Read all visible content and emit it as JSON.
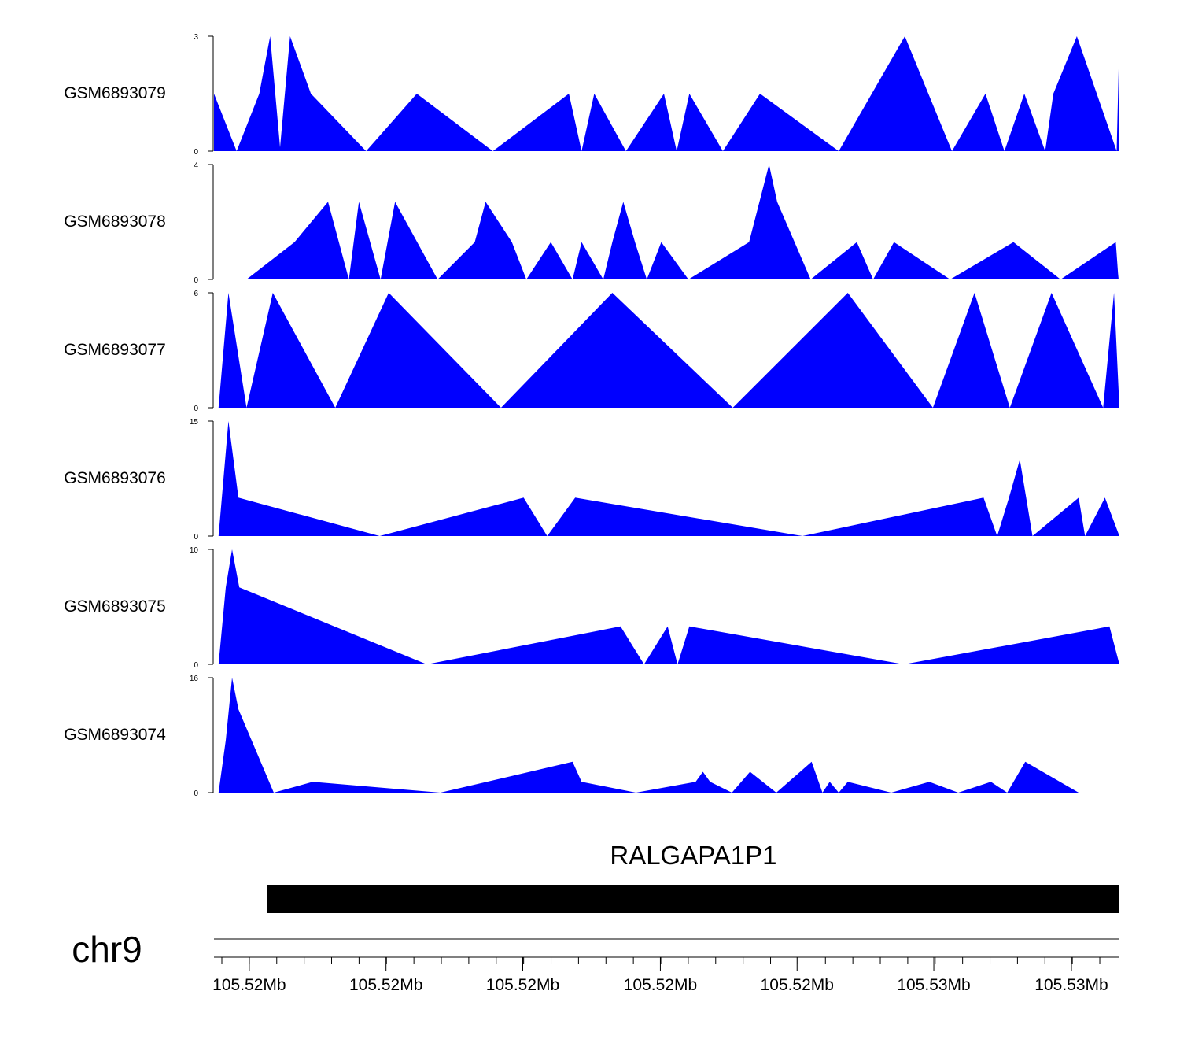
{
  "chart_data": {
    "type": "area",
    "fill_color": "#0000ff",
    "axis_color": "#000000",
    "gene_color": "#000000",
    "x_domain": [
      0,
      1
    ],
    "tracks": [
      {
        "name": "GSM6893079",
        "ymax": 3,
        "ticks": [
          "0",
          "3"
        ],
        "x": [
          0,
          0.025,
          0.05,
          0.062,
          0.073,
          0.084,
          0.107,
          0.168,
          0.224,
          0.308,
          0.392,
          0.406,
          0.42,
          0.455,
          0.497,
          0.511,
          0.525,
          0.562,
          0.603,
          0.69,
          0.763,
          0.789,
          0.815,
          0.852,
          0.873,
          0.895,
          0.918,
          0.927,
          0.953,
          0.997,
          1.0
        ],
        "y": [
          1.5,
          0,
          1.5,
          3,
          0.1,
          3,
          1.5,
          0,
          1.5,
          0,
          1.5,
          0,
          1.5,
          0,
          1.5,
          0,
          1.5,
          0,
          1.5,
          0,
          3,
          1.5,
          0,
          1.5,
          0,
          1.5,
          0,
          1.5,
          3,
          0,
          3
        ]
      },
      {
        "name": "GSM6893078",
        "ymax": 4,
        "ticks": [
          "0",
          "4"
        ],
        "x": [
          0.036,
          0.089,
          0.126,
          0.149,
          0.16,
          0.184,
          0.2,
          0.247,
          0.288,
          0.3,
          0.329,
          0.345,
          0.372,
          0.396,
          0.406,
          0.43,
          0.44,
          0.452,
          0.465,
          0.478,
          0.494,
          0.524,
          0.591,
          0.613,
          0.622,
          0.659,
          0.71,
          0.728,
          0.751,
          0.813,
          0.883,
          0.935,
          0.996,
          0.999,
          1.0
        ],
        "y": [
          0,
          1.3,
          2.7,
          0,
          2.7,
          0,
          2.7,
          0,
          1.3,
          2.7,
          1.3,
          0,
          1.3,
          0,
          1.3,
          0,
          1.3,
          2.7,
          1.3,
          0,
          1.3,
          0,
          1.3,
          4,
          2.7,
          0,
          1.3,
          0,
          1.3,
          0,
          1.3,
          0,
          1.3,
          0,
          1.3
        ]
      },
      {
        "name": "GSM6893077",
        "ymax": 6,
        "ticks": [
          "0",
          "6"
        ],
        "x": [
          0.005,
          0.016,
          0.036,
          0.065,
          0.134,
          0.193,
          0.317,
          0.44,
          0.573,
          0.7,
          0.794,
          0.84,
          0.879,
          0.925,
          0.982,
          0.994,
          1.0
        ],
        "y": [
          0,
          6,
          0,
          6,
          0,
          6,
          0,
          6,
          0,
          6,
          0,
          6,
          0,
          6,
          0,
          6,
          0
        ]
      },
      {
        "name": "GSM6893076",
        "ymax": 15,
        "ticks": [
          "0",
          "15"
        ],
        "x": [
          0.005,
          0.016,
          0.027,
          0.183,
          0.342,
          0.368,
          0.399,
          0.65,
          0.85,
          0.865,
          0.878,
          0.89,
          0.904,
          0.955,
          0.962,
          0.984,
          1.0
        ],
        "y": [
          0,
          15,
          5,
          0,
          5,
          0,
          5,
          0,
          5,
          0,
          5,
          10,
          0,
          5,
          0,
          5,
          0
        ]
      },
      {
        "name": "GSM6893075",
        "ymax": 10,
        "ticks": [
          "0",
          "10"
        ],
        "x": [
          0.005,
          0.013,
          0.02,
          0.028,
          0.235,
          0.449,
          0.475,
          0.501,
          0.512,
          0.525,
          0.762,
          0.989,
          1.0
        ],
        "y": [
          0,
          6.7,
          10,
          6.7,
          0,
          3.3,
          0,
          3.3,
          0,
          3.3,
          0,
          3.3,
          0
        ]
      },
      {
        "name": "GSM6893074",
        "ymax": 16,
        "ticks": [
          "0",
          "16"
        ],
        "x": [
          0.005,
          0.013,
          0.02,
          0.027,
          0.066,
          0.109,
          0.25,
          0.396,
          0.406,
          0.466,
          0.532,
          0.54,
          0.548,
          0.572,
          0.592,
          0.621,
          0.66,
          0.672,
          0.68,
          0.69,
          0.7,
          0.748,
          0.79,
          0.822,
          0.858,
          0.876,
          0.896,
          0.955,
          0.995,
          1.0
        ],
        "y": [
          0,
          7.3,
          16,
          11.6,
          0,
          1.5,
          0,
          4.3,
          1.5,
          0,
          1.5,
          2.9,
          1.5,
          0,
          2.9,
          0,
          4.3,
          0,
          1.5,
          0,
          1.5,
          0,
          1.5,
          0,
          1.5,
          0,
          4.3,
          0,
          0,
          0
        ]
      }
    ],
    "gene": {
      "name": "RALGAPA1P1",
      "start": 0.059,
      "end": 1.0
    },
    "chromosome": "chr9",
    "xtick_labels": [
      "105.52Mb",
      "105.52Mb",
      "105.52Mb",
      "105.52Mb",
      "105.52Mb",
      "105.53Mb",
      "105.53Mb"
    ],
    "major_tick_positions": [
      0.039,
      0.19,
      0.341,
      0.493,
      0.644,
      0.795,
      0.947
    ],
    "minor_tick_step": 0.0303
  }
}
